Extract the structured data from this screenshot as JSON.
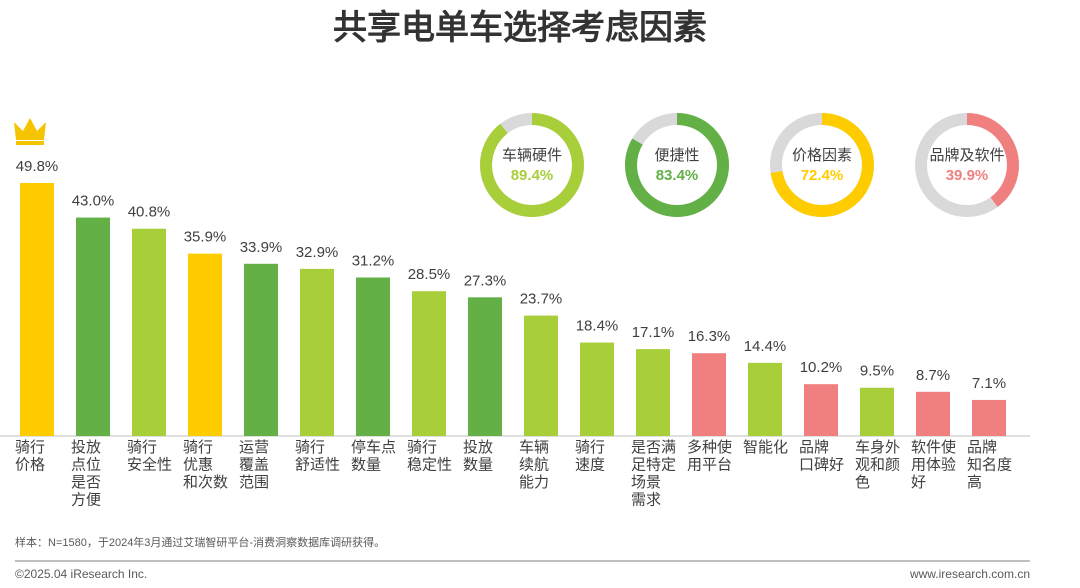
{
  "chart_data": [
    {
      "type": "bar",
      "title": "共享电单车选择考虑因素",
      "categories": [
        "骑行\n价格",
        "投放\n点位\n是否\n方便",
        "骑行\n安全性",
        "骑行\n优惠\n和次数",
        "运营\n覆盖\n范围",
        "骑行\n舒适性",
        "停车点\n数量",
        "骑行\n稳定性",
        "投放\n数量",
        "车辆\n续航\n能力",
        "骑行\n速度",
        "是否满\n足特定\n场景\n需求",
        "多种使\n用平台",
        "智能化",
        "品牌\n口碑好",
        "车身外\n观和颜\n色",
        "软件使\n用体验\n好",
        "品牌\n知名度\n高"
      ],
      "values": [
        49.8,
        43.0,
        40.8,
        35.9,
        33.9,
        32.9,
        31.2,
        28.5,
        27.3,
        23.7,
        18.4,
        17.1,
        16.3,
        14.4,
        10.2,
        9.5,
        8.7,
        7.1
      ],
      "value_labels": [
        "49.8%",
        "43.0%",
        "40.8%",
        "35.9%",
        "33.9%",
        "32.9%",
        "31.2%",
        "28.5%",
        "27.3%",
        "23.7%",
        "18.4%",
        "17.1%",
        "16.3%",
        "14.4%",
        "10.2%",
        "9.5%",
        "8.7%",
        "7.1%"
      ],
      "colors": [
        "#ffcc00",
        "#62b046",
        "#a8ce3a",
        "#ffcc00",
        "#62b046",
        "#a8ce3a",
        "#62b046",
        "#a8ce3a",
        "#62b046",
        "#a8ce3a",
        "#a8ce3a",
        "#a8ce3a",
        "#f08080",
        "#a8ce3a",
        "#f08080",
        "#a8ce3a",
        "#f08080",
        "#f08080"
      ],
      "ylim": [
        0,
        55
      ]
    },
    {
      "type": "donut",
      "categories": [
        "车辆硬件",
        "便捷性",
        "价格因素",
        "品牌及软件"
      ],
      "values": [
        89.4,
        83.4,
        72.4,
        39.9
      ],
      "value_labels": [
        "89.4%",
        "83.4%",
        "72.4%",
        "39.9%"
      ],
      "colors": [
        "#a8ce3a",
        "#62b046",
        "#ffcc00",
        "#f08080"
      ],
      "ylim": [
        0,
        100
      ]
    }
  ],
  "footer": {
    "note": "样本：N=1580，于2024年3月通过艾瑞智研平台-消费洞察数据库调研获得。",
    "copyright": "©2025.04 iResearch Inc.",
    "website": "www.iresearch.com.cn"
  }
}
